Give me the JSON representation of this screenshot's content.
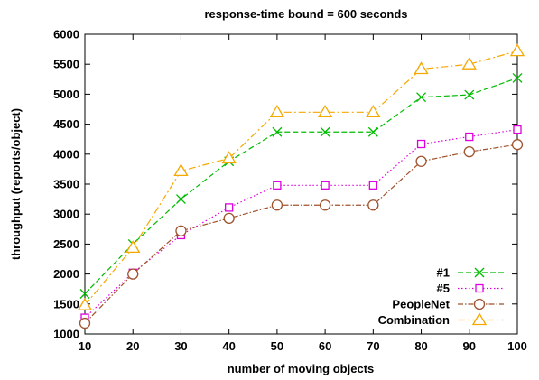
{
  "chart_data": {
    "type": "line",
    "title": "response-time bound = 600 seconds",
    "xlabel": "number of moving objects",
    "ylabel": "throughput (reports/object)",
    "xlim": [
      10,
      100
    ],
    "ylim": [
      1000,
      6000
    ],
    "x": [
      10,
      20,
      30,
      40,
      50,
      60,
      70,
      80,
      90,
      100
    ],
    "xticks": [
      "10",
      "20",
      "30",
      "40",
      "50",
      "60",
      "70",
      "80",
      "90",
      "100"
    ],
    "yticks": [
      "1000",
      "1500",
      "2000",
      "2500",
      "3000",
      "3500",
      "4000",
      "4500",
      "5000",
      "5500",
      "6000"
    ],
    "grid": false,
    "legend_position": "bottom-right",
    "series": [
      {
        "name": "#1",
        "color": "#00bb00",
        "dash": "6 3",
        "marker": "x",
        "values": [
          1670,
          2500,
          3250,
          3880,
          4370,
          4370,
          4370,
          4950,
          4990,
          5270
        ]
      },
      {
        "name": "#5",
        "color": "#dd00dd",
        "dash": "1.5 2.5",
        "marker": "square",
        "values": [
          1270,
          2020,
          2650,
          3110,
          3480,
          3480,
          3480,
          4170,
          4290,
          4410
        ]
      },
      {
        "name": "PeopleNet",
        "color": "#a0522d",
        "dash": "6 2 1.5 2",
        "marker": "circle",
        "values": [
          1180,
          2000,
          2720,
          2930,
          3150,
          3150,
          3150,
          3880,
          4040,
          4160
        ]
      },
      {
        "name": "Combination",
        "color": "#f5a800",
        "dash": "8 3 2 3",
        "marker": "triangle",
        "values": [
          1480,
          2440,
          3720,
          3930,
          4700,
          4700,
          4700,
          5420,
          5500,
          5720
        ]
      }
    ]
  }
}
